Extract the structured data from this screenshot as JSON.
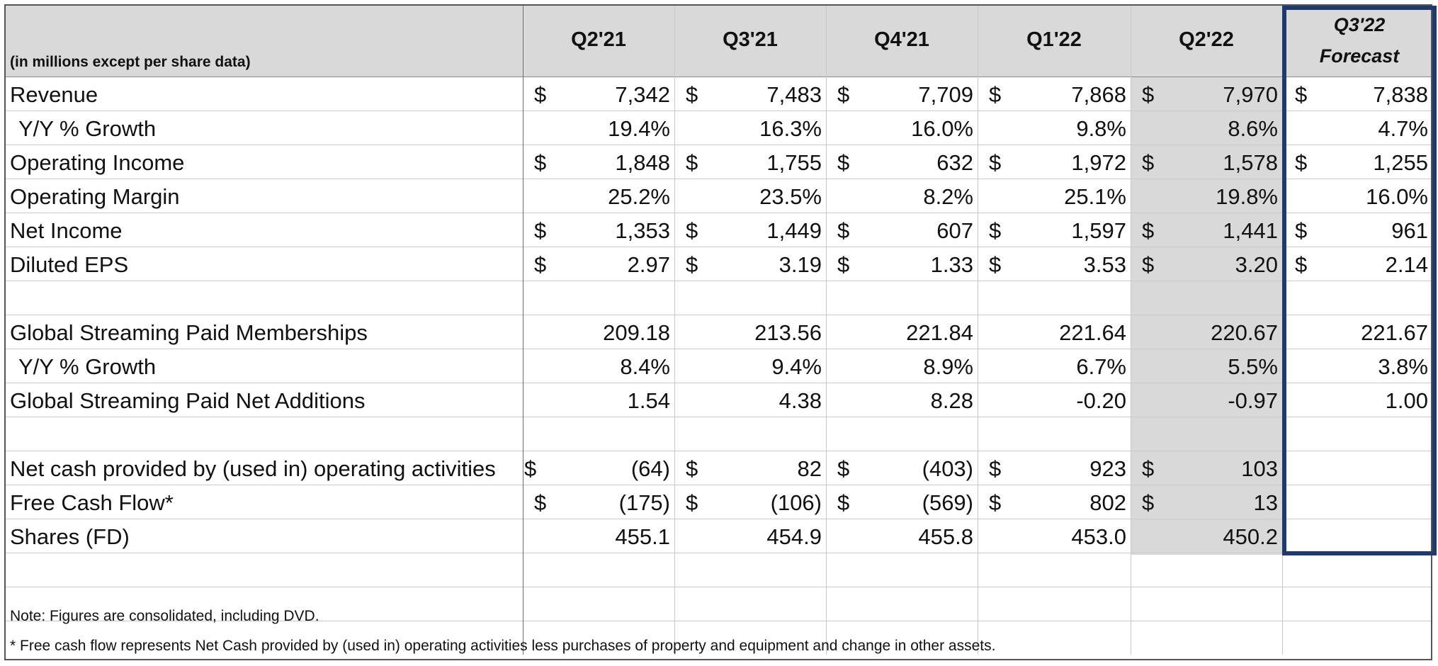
{
  "header": {
    "subtitle": "(in millions except per share data)",
    "quarters": [
      "Q2'21",
      "Q3'21",
      "Q4'21",
      "Q1'22",
      "Q2'22"
    ],
    "forecast_line1": "Q3'22",
    "forecast_line2": "Forecast"
  },
  "rows": {
    "revenue": {
      "label": "Revenue",
      "values": [
        "7,342",
        "7,483",
        "7,709",
        "7,868",
        "7,970",
        "7,838"
      ]
    },
    "revenue_growth": {
      "label": "Y/Y % Growth",
      "values": [
        "19.4%",
        "16.3%",
        "16.0%",
        "9.8%",
        "8.6%",
        "4.7%"
      ]
    },
    "operating_income": {
      "label": "Operating Income",
      "values": [
        "1,848",
        "1,755",
        "632",
        "1,972",
        "1,578",
        "1,255"
      ]
    },
    "operating_margin": {
      "label": "Operating Margin",
      "values": [
        "25.2%",
        "23.5%",
        "8.2%",
        "25.1%",
        "19.8%",
        "16.0%"
      ]
    },
    "net_income": {
      "label": "Net Income",
      "values": [
        "1,353",
        "1,449",
        "607",
        "1,597",
        "1,441",
        "961"
      ]
    },
    "diluted_eps": {
      "label": "Diluted EPS",
      "values": [
        "2.97",
        "3.19",
        "1.33",
        "3.53",
        "3.20",
        "2.14"
      ]
    },
    "memberships": {
      "label": "Global Streaming Paid Memberships",
      "values": [
        "209.18",
        "213.56",
        "221.84",
        "221.64",
        "220.67",
        "221.67"
      ]
    },
    "memberships_growth": {
      "label": "Y/Y % Growth",
      "values": [
        "8.4%",
        "9.4%",
        "8.9%",
        "6.7%",
        "5.5%",
        "3.8%"
      ]
    },
    "net_additions": {
      "label": "Global Streaming Paid Net Additions",
      "values": [
        "1.54",
        "4.38",
        "8.28",
        "-0.20",
        "-0.97",
        "1.00"
      ]
    },
    "operating_cash": {
      "label": "Net cash provided by (used in) operating activities",
      "values": [
        "(64)",
        "82",
        "(403)",
        "923",
        "103",
        ""
      ]
    },
    "free_cash_flow": {
      "label": "Free Cash Flow*",
      "values": [
        "(175)",
        "(106)",
        "(569)",
        "802",
        "13",
        ""
      ]
    },
    "shares": {
      "label": "Shares (FD)",
      "values": [
        "455.1",
        "454.9",
        "455.8",
        "453.0",
        "450.2",
        ""
      ]
    }
  },
  "currency_symbol": "$",
  "notes": {
    "note1": "Note: Figures are consolidated, including DVD.",
    "note2": "* Free cash flow represents Net Cash provided by (used in) operating activities less purchases of property and equipment and change in other assets."
  },
  "colors": {
    "header_fill": "#d9d9d9",
    "current_quarter_fill": "#d9d9d9",
    "forecast_border": "#1f3a6e"
  }
}
